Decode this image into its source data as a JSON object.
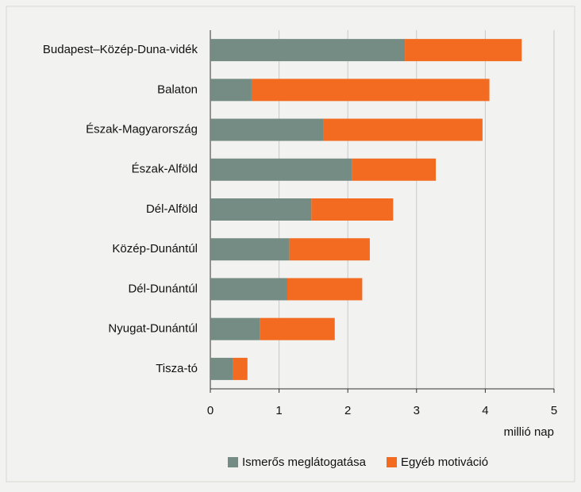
{
  "chart_data": {
    "type": "bar",
    "orientation": "horizontal",
    "stacked": true,
    "categories": [
      "Budapest–Közép-Duna-vidék",
      "Balaton",
      "Észak-Magyarország",
      "Észak-Alföld",
      "Dél-Alföld",
      "Közép-Dunántúl",
      "Dél-Dunántúl",
      "Nyugat-Dunántúl",
      "Tisza-tó"
    ],
    "series": [
      {
        "name": "Ismerős meglátogatása",
        "color": "#748c83",
        "values": [
          2.83,
          0.6,
          1.65,
          2.06,
          1.47,
          1.15,
          1.12,
          0.72,
          0.33
        ]
      },
      {
        "name": "Egyéb motiváció",
        "color": "#f26b21",
        "values": [
          1.7,
          3.46,
          2.31,
          1.22,
          1.19,
          1.17,
          1.09,
          1.09,
          0.21
        ]
      }
    ],
    "x_axis_label": "millió nap",
    "xlim": [
      0,
      5
    ],
    "xticks": [
      0,
      1,
      2,
      3,
      4,
      5
    ],
    "grid": true,
    "legend": "bottom"
  }
}
